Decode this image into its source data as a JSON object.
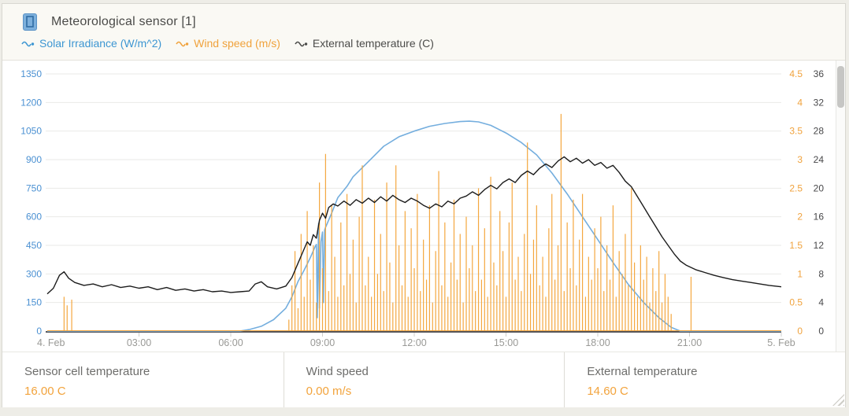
{
  "header": {
    "title": "Meteorological sensor [1]"
  },
  "legend": [
    {
      "label": "Solar Irradiance (W/m^2)",
      "color": "#3d96d2"
    },
    {
      "label": "Wind speed (m/s)",
      "color": "#f0a23c"
    },
    {
      "label": "External temperature (C)",
      "color": "#4c4c4a"
    }
  ],
  "stats": [
    {
      "label": "Sensor cell temperature",
      "value": "16.00 C"
    },
    {
      "label": "Wind speed",
      "value": "0.00 m/s"
    },
    {
      "label": "External temperature",
      "value": "14.60 C"
    }
  ],
  "chart_data": {
    "type": "line",
    "title": "Meteorological sensor [1]",
    "x_axis": {
      "labels": [
        "4. Feb",
        "03:00",
        "06:00",
        "09:00",
        "12:00",
        "15:00",
        "18:00",
        "21:00",
        "5. Feb"
      ],
      "hours": [
        0,
        3,
        6,
        9,
        12,
        15,
        18,
        21,
        24
      ],
      "range_hours": [
        0,
        24
      ],
      "label_color": "#999996",
      "axis_line_color": "#55555a",
      "grid_color": "#e9e9e7"
    },
    "y_axes": {
      "solar": {
        "label": "Solar Irradiance (W/m^2)",
        "side": "left",
        "min": 0,
        "max": 1350,
        "ticks": [
          "0",
          "150",
          "300",
          "450",
          "600",
          "750",
          "900",
          "1050",
          "1200",
          "1350"
        ],
        "color": "#4a90d2"
      },
      "wind": {
        "label": "Wind speed (m/s)",
        "side": "right",
        "min": 0,
        "max": 4.5,
        "ticks": [
          "0",
          "0.5",
          "1",
          "1.5",
          "2",
          "2.5",
          "3",
          "3.5",
          "4",
          "4.5"
        ],
        "color": "#f0a23c"
      },
      "temperature": {
        "label": "External temperature (C)",
        "side": "right",
        "min": 0,
        "max": 36,
        "ticks": [
          "0",
          "4",
          "8",
          "12",
          "16",
          "20",
          "24",
          "28",
          "32",
          "36"
        ],
        "color": "#48484a"
      }
    },
    "series": [
      {
        "name": "Solar Irradiance (W/m^2)",
        "axis": "solar",
        "render": "line",
        "color": "#74aede",
        "width": 1.6,
        "points": [
          [
            0,
            0
          ],
          [
            6.3,
            0
          ],
          [
            6.6,
            8
          ],
          [
            7.0,
            25
          ],
          [
            7.4,
            60
          ],
          [
            7.8,
            120
          ],
          [
            8.0,
            180
          ],
          [
            8.2,
            260
          ],
          [
            8.4,
            320
          ],
          [
            8.6,
            385
          ],
          [
            8.75,
            440
          ],
          [
            8.8,
            455
          ],
          [
            8.83,
            70
          ],
          [
            8.87,
            565
          ],
          [
            8.9,
            120
          ],
          [
            8.95,
            470
          ],
          [
            9.0,
            520
          ],
          [
            9.03,
            150
          ],
          [
            9.07,
            530
          ],
          [
            9.1,
            545
          ],
          [
            9.3,
            620
          ],
          [
            9.5,
            700
          ],
          [
            9.8,
            760
          ],
          [
            10.0,
            810
          ],
          [
            10.5,
            890
          ],
          [
            11.0,
            970
          ],
          [
            11.5,
            1020
          ],
          [
            12.0,
            1050
          ],
          [
            12.5,
            1075
          ],
          [
            13.0,
            1090
          ],
          [
            13.5,
            1100
          ],
          [
            13.8,
            1102
          ],
          [
            14.1,
            1098
          ],
          [
            14.5,
            1080
          ],
          [
            15.0,
            1040
          ],
          [
            15.5,
            990
          ],
          [
            16.0,
            925
          ],
          [
            16.5,
            830
          ],
          [
            17.0,
            720
          ],
          [
            17.5,
            600
          ],
          [
            18.0,
            480
          ],
          [
            18.5,
            360
          ],
          [
            19.0,
            245
          ],
          [
            19.5,
            150
          ],
          [
            20.0,
            70
          ],
          [
            20.4,
            20
          ],
          [
            20.7,
            0
          ],
          [
            24,
            0
          ]
        ]
      },
      {
        "name": "Wind speed (m/s)",
        "axis": "wind",
        "render": "spikes",
        "color": "#f4a73f",
        "width": 1.2,
        "zero_line": true,
        "segments": [
          {
            "points": [
              [
                0.55,
                0.6
              ],
              [
                0.65,
                0.45
              ],
              [
                0.8,
                0.55
              ]
            ]
          },
          {
            "start": 7.9,
            "step": 0.1,
            "values": [
              0.2,
              0.8,
              1.4,
              0.4,
              1.7,
              0.6,
              2.1,
              0.9,
              1.5,
              0.5,
              2.6,
              1.1,
              3.1,
              0.7,
              2.2,
              1.3,
              0.6,
              1.9,
              0.8,
              2.4,
              1.0,
              1.6,
              0.5,
              2.0,
              2.9,
              0.8,
              1.3,
              0.6,
              2.3,
              1.0,
              1.7,
              0.7,
              2.6,
              1.2,
              0.5,
              2.9,
              1.5,
              0.8,
              2.1,
              0.6,
              1.8,
              1.1,
              2.4,
              0.7,
              1.6,
              0.9,
              2.2,
              0.5,
              1.4,
              2.8,
              0.8,
              1.9,
              0.6,
              1.2,
              2.3,
              0.9,
              1.7,
              0.5,
              2.0,
              1.1,
              1.5,
              0.7,
              2.5,
              0.9,
              1.8,
              0.6,
              2.7,
              1.2,
              0.8,
              2.1,
              1.4,
              0.6,
              1.9,
              2.6,
              0.9,
              1.3,
              0.7,
              1.7,
              3.3,
              1.0,
              1.6,
              2.2,
              0.8,
              1.3,
              0.6,
              1.8,
              2.4,
              0.9,
              1.5,
              3.8,
              0.7,
              1.9,
              1.1,
              2.3,
              0.8,
              1.6,
              2.4,
              0.6,
              1.3,
              0.9,
              1.8,
              1.1,
              2.0,
              0.7,
              1.5,
              0.9,
              2.2,
              0.6,
              1.4,
              1.0,
              1.7,
              0.8,
              2.5,
              1.2,
              0.6,
              1.5,
              0.9,
              1.3,
              0.5,
              1.1,
              0.7,
              1.4,
              0.5,
              1.0,
              0.6,
              0.3,
              0.0,
              0.0,
              0.0,
              0.0,
              0.0,
              0.0
            ]
          },
          {
            "points": [
              [
                21.05,
                0.95
              ]
            ]
          }
        ]
      },
      {
        "name": "External temperature (C)",
        "axis": "temperature",
        "render": "line",
        "color": "#1c1c1c",
        "width": 1.4,
        "points": [
          [
            0,
            5.2
          ],
          [
            0.2,
            6.0
          ],
          [
            0.4,
            7.8
          ],
          [
            0.55,
            8.3
          ],
          [
            0.7,
            7.4
          ],
          [
            0.9,
            6.8
          ],
          [
            1.2,
            6.4
          ],
          [
            1.5,
            6.6
          ],
          [
            1.8,
            6.2
          ],
          [
            2.1,
            6.5
          ],
          [
            2.4,
            6.1
          ],
          [
            2.7,
            6.3
          ],
          [
            3.0,
            6.0
          ],
          [
            3.3,
            6.2
          ],
          [
            3.6,
            5.8
          ],
          [
            3.9,
            6.1
          ],
          [
            4.2,
            5.7
          ],
          [
            4.5,
            5.9
          ],
          [
            4.8,
            5.6
          ],
          [
            5.1,
            5.8
          ],
          [
            5.4,
            5.5
          ],
          [
            5.7,
            5.6
          ],
          [
            6.0,
            5.4
          ],
          [
            6.3,
            5.5
          ],
          [
            6.6,
            5.6
          ],
          [
            6.8,
            6.6
          ],
          [
            7.0,
            6.9
          ],
          [
            7.2,
            6.2
          ],
          [
            7.5,
            5.9
          ],
          [
            7.8,
            6.3
          ],
          [
            8.0,
            7.5
          ],
          [
            8.2,
            9.5
          ],
          [
            8.4,
            11.5
          ],
          [
            8.5,
            12.5
          ],
          [
            8.6,
            12.0
          ],
          [
            8.7,
            13.5
          ],
          [
            8.8,
            13.0
          ],
          [
            8.9,
            15.5
          ],
          [
            9.0,
            16.5
          ],
          [
            9.1,
            15.8
          ],
          [
            9.2,
            17.3
          ],
          [
            9.35,
            17.8
          ],
          [
            9.5,
            17.5
          ],
          [
            9.7,
            18.2
          ],
          [
            9.9,
            17.6
          ],
          [
            10.1,
            18.4
          ],
          [
            10.3,
            17.9
          ],
          [
            10.5,
            18.6
          ],
          [
            10.7,
            18.0
          ],
          [
            10.9,
            18.8
          ],
          [
            11.1,
            18.2
          ],
          [
            11.3,
            19.0
          ],
          [
            11.5,
            18.4
          ],
          [
            11.7,
            18.0
          ],
          [
            11.9,
            18.6
          ],
          [
            12.1,
            18.2
          ],
          [
            12.3,
            17.6
          ],
          [
            12.5,
            17.2
          ],
          [
            12.7,
            17.8
          ],
          [
            12.9,
            17.4
          ],
          [
            13.1,
            18.2
          ],
          [
            13.3,
            17.8
          ],
          [
            13.5,
            18.6
          ],
          [
            13.7,
            18.9
          ],
          [
            13.9,
            19.5
          ],
          [
            14.1,
            19.0
          ],
          [
            14.3,
            19.8
          ],
          [
            14.5,
            20.4
          ],
          [
            14.7,
            19.9
          ],
          [
            14.9,
            20.8
          ],
          [
            15.1,
            21.3
          ],
          [
            15.3,
            20.8
          ],
          [
            15.5,
            21.8
          ],
          [
            15.7,
            22.4
          ],
          [
            15.9,
            21.9
          ],
          [
            16.1,
            22.8
          ],
          [
            16.3,
            23.4
          ],
          [
            16.5,
            22.9
          ],
          [
            16.7,
            23.8
          ],
          [
            16.9,
            24.4
          ],
          [
            17.1,
            23.7
          ],
          [
            17.3,
            24.2
          ],
          [
            17.5,
            23.5
          ],
          [
            17.7,
            24.0
          ],
          [
            17.9,
            23.2
          ],
          [
            18.1,
            23.6
          ],
          [
            18.3,
            22.8
          ],
          [
            18.5,
            23.2
          ],
          [
            18.7,
            22.2
          ],
          [
            18.9,
            21.0
          ],
          [
            19.1,
            20.2
          ],
          [
            19.3,
            18.8
          ],
          [
            19.5,
            17.4
          ],
          [
            19.7,
            16.0
          ],
          [
            19.9,
            14.6
          ],
          [
            20.1,
            13.2
          ],
          [
            20.3,
            12.0
          ],
          [
            20.5,
            10.8
          ],
          [
            20.7,
            9.8
          ],
          [
            20.9,
            9.2
          ],
          [
            21.2,
            8.6
          ],
          [
            21.5,
            8.2
          ],
          [
            21.8,
            7.8
          ],
          [
            22.1,
            7.5
          ],
          [
            22.4,
            7.2
          ],
          [
            22.7,
            7.0
          ],
          [
            23.0,
            6.8
          ],
          [
            23.3,
            6.6
          ],
          [
            23.6,
            6.4
          ],
          [
            24,
            6.2
          ]
        ]
      }
    ],
    "legend_position": "top",
    "grid": true
  }
}
